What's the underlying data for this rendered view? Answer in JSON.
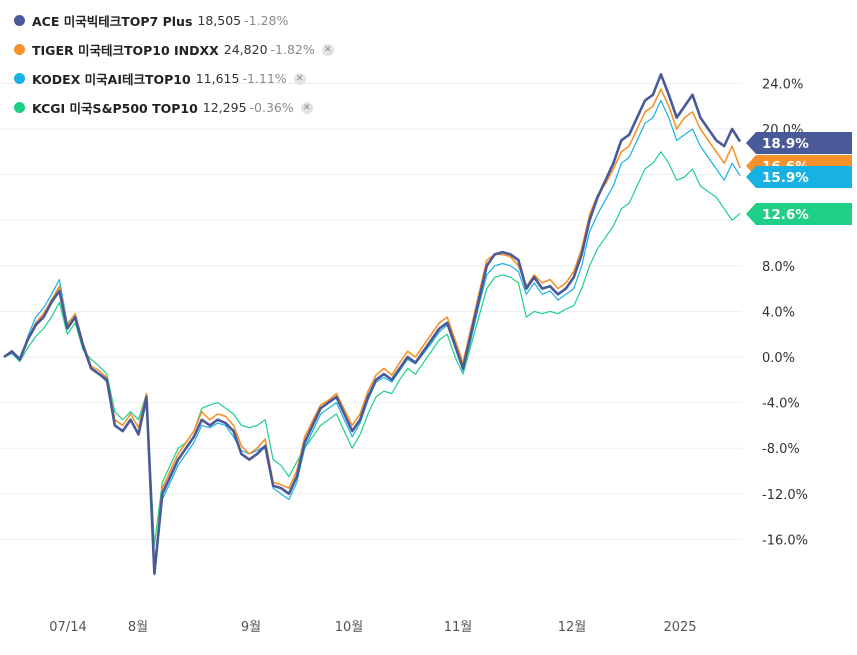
{
  "legend": [
    {
      "name": "ACE 미국빅테크TOP7 Plus",
      "value": "18,505",
      "change": "-1.28%",
      "color": "#4a5a98",
      "closable": false
    },
    {
      "name": "TIGER 미국테크TOP10 INDXX",
      "value": "24,820",
      "change": "-1.82%",
      "color": "#f5922b",
      "closable": true
    },
    {
      "name": "KODEX 미국AI테크TOP10",
      "value": "11,615",
      "change": "-1.11%",
      "color": "#17b1e4",
      "closable": true
    },
    {
      "name": "KCGI 미국S&P500 TOP10",
      "value": "12,295",
      "change": "-0.36%",
      "color": "#1ecf85",
      "closable": true
    }
  ],
  "chart_data": {
    "type": "line",
    "y_ticks": [
      "24.0%",
      "20.0%",
      "16.0%",
      "12.0%",
      "8.0%",
      "4.0%",
      "0.0%",
      "-4.0%",
      "-8.0%",
      "-12.0%",
      "-16.0%"
    ],
    "x_ticks": [
      "07/14",
      "8월",
      "9월",
      "10월",
      "11월",
      "12월",
      "2025"
    ],
    "ylim": [
      -19.2,
      26.3
    ],
    "y_unit": "%",
    "grid": true,
    "end_labels": [
      "18.9%",
      "16.6%",
      "15.9%",
      "12.6%"
    ],
    "series": [
      {
        "name": "ACE 미국빅테크TOP7 Plus",
        "color": "#4a5a98",
        "width": 2.6,
        "values": [
          0,
          0.5,
          -0.2,
          1.5,
          2.8,
          3.5,
          4.8,
          5.8,
          2.5,
          3.5,
          1.0,
          -1.0,
          -1.5,
          -2.0,
          -6.0,
          -6.5,
          -5.5,
          -6.8,
          -3.5,
          -19.0,
          -12.0,
          -10.5,
          -9.0,
          -8.0,
          -7.0,
          -5.5,
          -6.0,
          -5.5,
          -5.8,
          -6.5,
          -8.5,
          -9.0,
          -8.5,
          -7.8,
          -11.3,
          -11.5,
          -12.0,
          -10.5,
          -7.5,
          -6.0,
          -4.5,
          -4.0,
          -3.5,
          -5.0,
          -6.5,
          -5.5,
          -3.5,
          -2.0,
          -1.5,
          -2.0,
          -1.0,
          0.0,
          -0.5,
          0.5,
          1.5,
          2.5,
          3.0,
          1.0,
          -1.0,
          2.0,
          5.0,
          8.0,
          9.0,
          9.2,
          9.0,
          8.5,
          6.0,
          7.0,
          6.0,
          6.2,
          5.5,
          6.0,
          7.0,
          9.0,
          12.0,
          14.0,
          15.5,
          17.0,
          19.0,
          19.5,
          21.0,
          22.5,
          23.0,
          24.8,
          23.0,
          21.0,
          22.0,
          23.0,
          21.0,
          20.0,
          19.0,
          18.5,
          20.0,
          18.9
        ]
      },
      {
        "name": "TIGER 미국테크TOP10 INDXX",
        "color": "#f5922b",
        "width": 1.6,
        "values": [
          0,
          0.4,
          -0.1,
          1.6,
          3.0,
          3.8,
          5.0,
          6.2,
          2.8,
          3.8,
          1.2,
          -0.8,
          -1.2,
          -1.8,
          -5.5,
          -6.0,
          -5.0,
          -6.2,
          -3.2,
          -18.5,
          -11.5,
          -10.0,
          -8.5,
          -7.5,
          -6.5,
          -4.8,
          -5.5,
          -5.0,
          -5.2,
          -6.0,
          -7.8,
          -8.5,
          -8.0,
          -7.2,
          -11.0,
          -11.2,
          -11.5,
          -10.0,
          -7.0,
          -5.6,
          -4.2,
          -3.8,
          -3.2,
          -4.6,
          -6.0,
          -5.0,
          -3.0,
          -1.6,
          -1.0,
          -1.6,
          -0.5,
          0.5,
          0.0,
          1.0,
          2.0,
          3.0,
          3.5,
          1.5,
          -0.5,
          2.5,
          5.5,
          8.5,
          9.0,
          9.0,
          8.8,
          8.0,
          6.2,
          7.2,
          6.5,
          6.8,
          6.0,
          6.5,
          7.5,
          9.5,
          12.5,
          14.2,
          15.2,
          16.5,
          18.0,
          18.5,
          20.0,
          21.5,
          22.0,
          23.5,
          22.0,
          20.0,
          21.0,
          21.5,
          20.0,
          19.0,
          18.0,
          17.0,
          18.5,
          16.6
        ]
      },
      {
        "name": "KODEX 미국AI테크TOP10",
        "color": "#17b1e4",
        "width": 1.2,
        "values": [
          0,
          0.3,
          -0.3,
          1.8,
          3.5,
          4.3,
          5.5,
          6.8,
          2.9,
          3.8,
          0.8,
          -1.0,
          -1.5,
          -2.2,
          -6.0,
          -6.5,
          -5.5,
          -6.8,
          -4.0,
          -19.1,
          -12.5,
          -11.0,
          -9.5,
          -8.5,
          -7.5,
          -6.0,
          -6.2,
          -5.8,
          -6.0,
          -7.0,
          -8.2,
          -8.5,
          -8.2,
          -7.8,
          -11.5,
          -12.0,
          -12.5,
          -11.0,
          -8.0,
          -6.5,
          -5.0,
          -4.5,
          -4.0,
          -5.5,
          -7.0,
          -5.8,
          -3.8,
          -2.2,
          -1.8,
          -2.2,
          -1.2,
          -0.2,
          -0.6,
          0.3,
          1.2,
          2.2,
          2.8,
          0.8,
          -1.2,
          1.5,
          4.5,
          7.2,
          8.0,
          8.2,
          8.0,
          7.5,
          5.5,
          6.5,
          5.5,
          5.8,
          5.0,
          5.5,
          6.0,
          8.0,
          11.0,
          12.5,
          13.8,
          15.0,
          17.0,
          17.5,
          19.0,
          20.5,
          21.0,
          22.5,
          21.0,
          19.0,
          19.5,
          20.0,
          18.5,
          17.5,
          16.5,
          15.5,
          17.0,
          15.9
        ]
      },
      {
        "name": "KCGI 미국S&P500 TOP10",
        "color": "#1ecf85",
        "width": 1.2,
        "values": [
          0,
          0.3,
          -0.4,
          0.8,
          1.8,
          2.5,
          3.5,
          4.8,
          2.0,
          3.0,
          0.6,
          -0.2,
          -0.8,
          -1.5,
          -4.8,
          -5.5,
          -4.8,
          -5.5,
          -3.2,
          -16.5,
          -11.0,
          -9.5,
          -8.0,
          -7.5,
          -6.5,
          -4.5,
          -4.2,
          -4.0,
          -4.5,
          -5.0,
          -6.0,
          -6.2,
          -6.0,
          -5.5,
          -9.0,
          -9.5,
          -10.5,
          -9.2,
          -8.0,
          -7.0,
          -6.0,
          -5.5,
          -5.0,
          -6.5,
          -8.0,
          -6.8,
          -5.0,
          -3.5,
          -3.0,
          -3.2,
          -2.0,
          -1.0,
          -1.5,
          -0.5,
          0.5,
          1.5,
          2.0,
          0.0,
          -1.5,
          1.0,
          3.5,
          6.0,
          7.0,
          7.2,
          7.0,
          6.5,
          3.5,
          4.0,
          3.8,
          4.0,
          3.8,
          4.2,
          4.5,
          6.0,
          8.0,
          9.5,
          10.5,
          11.5,
          13.0,
          13.5,
          15.0,
          16.5,
          17.0,
          18.0,
          17.0,
          15.5,
          15.8,
          16.5,
          15.0,
          14.5,
          14.0,
          13.0,
          12.0,
          12.6
        ]
      }
    ]
  }
}
